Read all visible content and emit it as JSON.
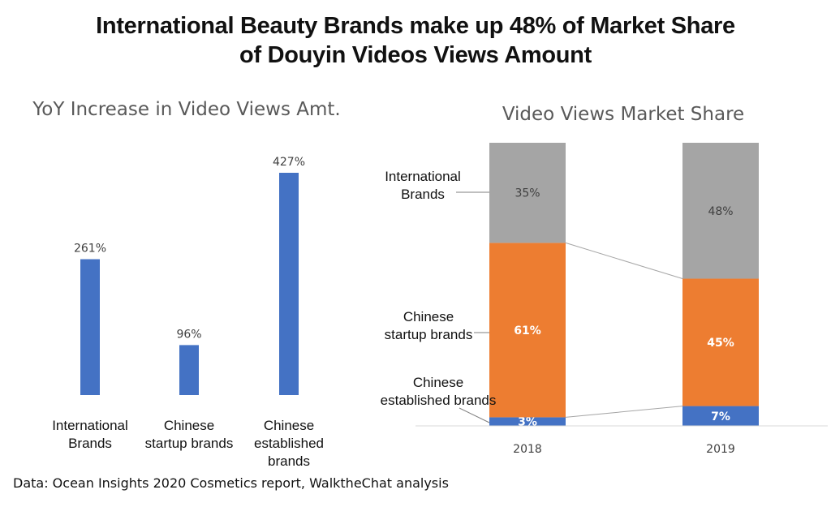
{
  "title_line1": "International Beauty Brands make up 48% of Market Share",
  "title_line2": "of Douyin Videos Views Amount",
  "source": "Data: Ocean Insights 2020 Cosmetics report, WalktheChat analysis",
  "colors": {
    "blue": "#4472C4",
    "orange": "#ED7D31",
    "gray": "#A5A5A5",
    "axis": "#d9d9d9"
  },
  "chart_data": [
    {
      "type": "bar",
      "title": "YoY Increase in Video Views Amt.",
      "categories": [
        [
          "International",
          "Brands"
        ],
        [
          "Chinese",
          "startup brands"
        ],
        [
          "Chinese",
          "established",
          "brands"
        ]
      ],
      "values": [
        261,
        96,
        427
      ],
      "data_labels": [
        "261%",
        "96%",
        "427%"
      ],
      "ylim": [
        0,
        427
      ],
      "grid": false
    },
    {
      "type": "bar",
      "stacked": true,
      "percent": true,
      "title": "Video Views Market Share",
      "categories": [
        "2018",
        "2019"
      ],
      "series": [
        {
          "name": "Chinese established brands",
          "values": [
            3,
            7
          ],
          "labels": [
            "3%",
            "7%"
          ]
        },
        {
          "name": "Chinese startup brands",
          "values": [
            61,
            45
          ],
          "labels": [
            "61%",
            "45%"
          ]
        },
        {
          "name": "International Brands",
          "values": [
            35,
            48
          ],
          "labels": [
            "35%",
            "48%"
          ]
        }
      ],
      "series_label_lines": [
        [
          "Chinese",
          "established brands"
        ],
        [
          "Chinese",
          "startup brands"
        ],
        [
          "International",
          "Brands"
        ]
      ],
      "grid": false
    }
  ]
}
